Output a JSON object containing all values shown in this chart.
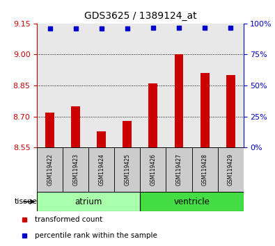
{
  "title": "GDS3625 / 1389124_at",
  "samples": [
    "GSM119422",
    "GSM119423",
    "GSM119424",
    "GSM119425",
    "GSM119426",
    "GSM119427",
    "GSM119428",
    "GSM119429"
  ],
  "bar_values": [
    8.72,
    8.75,
    8.63,
    8.68,
    8.86,
    9.0,
    8.91,
    8.9
  ],
  "percentile_left_values": [
    9.125,
    9.125,
    9.125,
    9.125,
    9.128,
    9.128,
    9.128,
    9.128
  ],
  "bar_color": "#cc0000",
  "dot_color": "#0000cc",
  "ylim_left": [
    8.55,
    9.15
  ],
  "ylim_right": [
    0,
    100
  ],
  "yticks_left": [
    8.55,
    8.7,
    8.85,
    9.0,
    9.15
  ],
  "yticks_right": [
    0,
    25,
    50,
    75,
    100
  ],
  "dotted_yticks": [
    8.7,
    8.85,
    9.0
  ],
  "groups": [
    {
      "label": "atrium",
      "start": 0,
      "end": 3,
      "color": "#aaffaa"
    },
    {
      "label": "ventricle",
      "start": 4,
      "end": 7,
      "color": "#44dd44"
    }
  ],
  "tissue_label": "tissue",
  "legend_items": [
    {
      "color": "#cc0000",
      "label": "transformed count",
      "marker": "s"
    },
    {
      "color": "#0000cc",
      "label": "percentile rank within the sample",
      "marker": "s"
    }
  ],
  "bar_bottom": 8.55,
  "bar_width": 0.35,
  "tick_label_color_left": "#cc0000",
  "tick_label_color_right": "#0000cc",
  "sample_box_color": "#cccccc",
  "plot_bg": "#ffffff"
}
